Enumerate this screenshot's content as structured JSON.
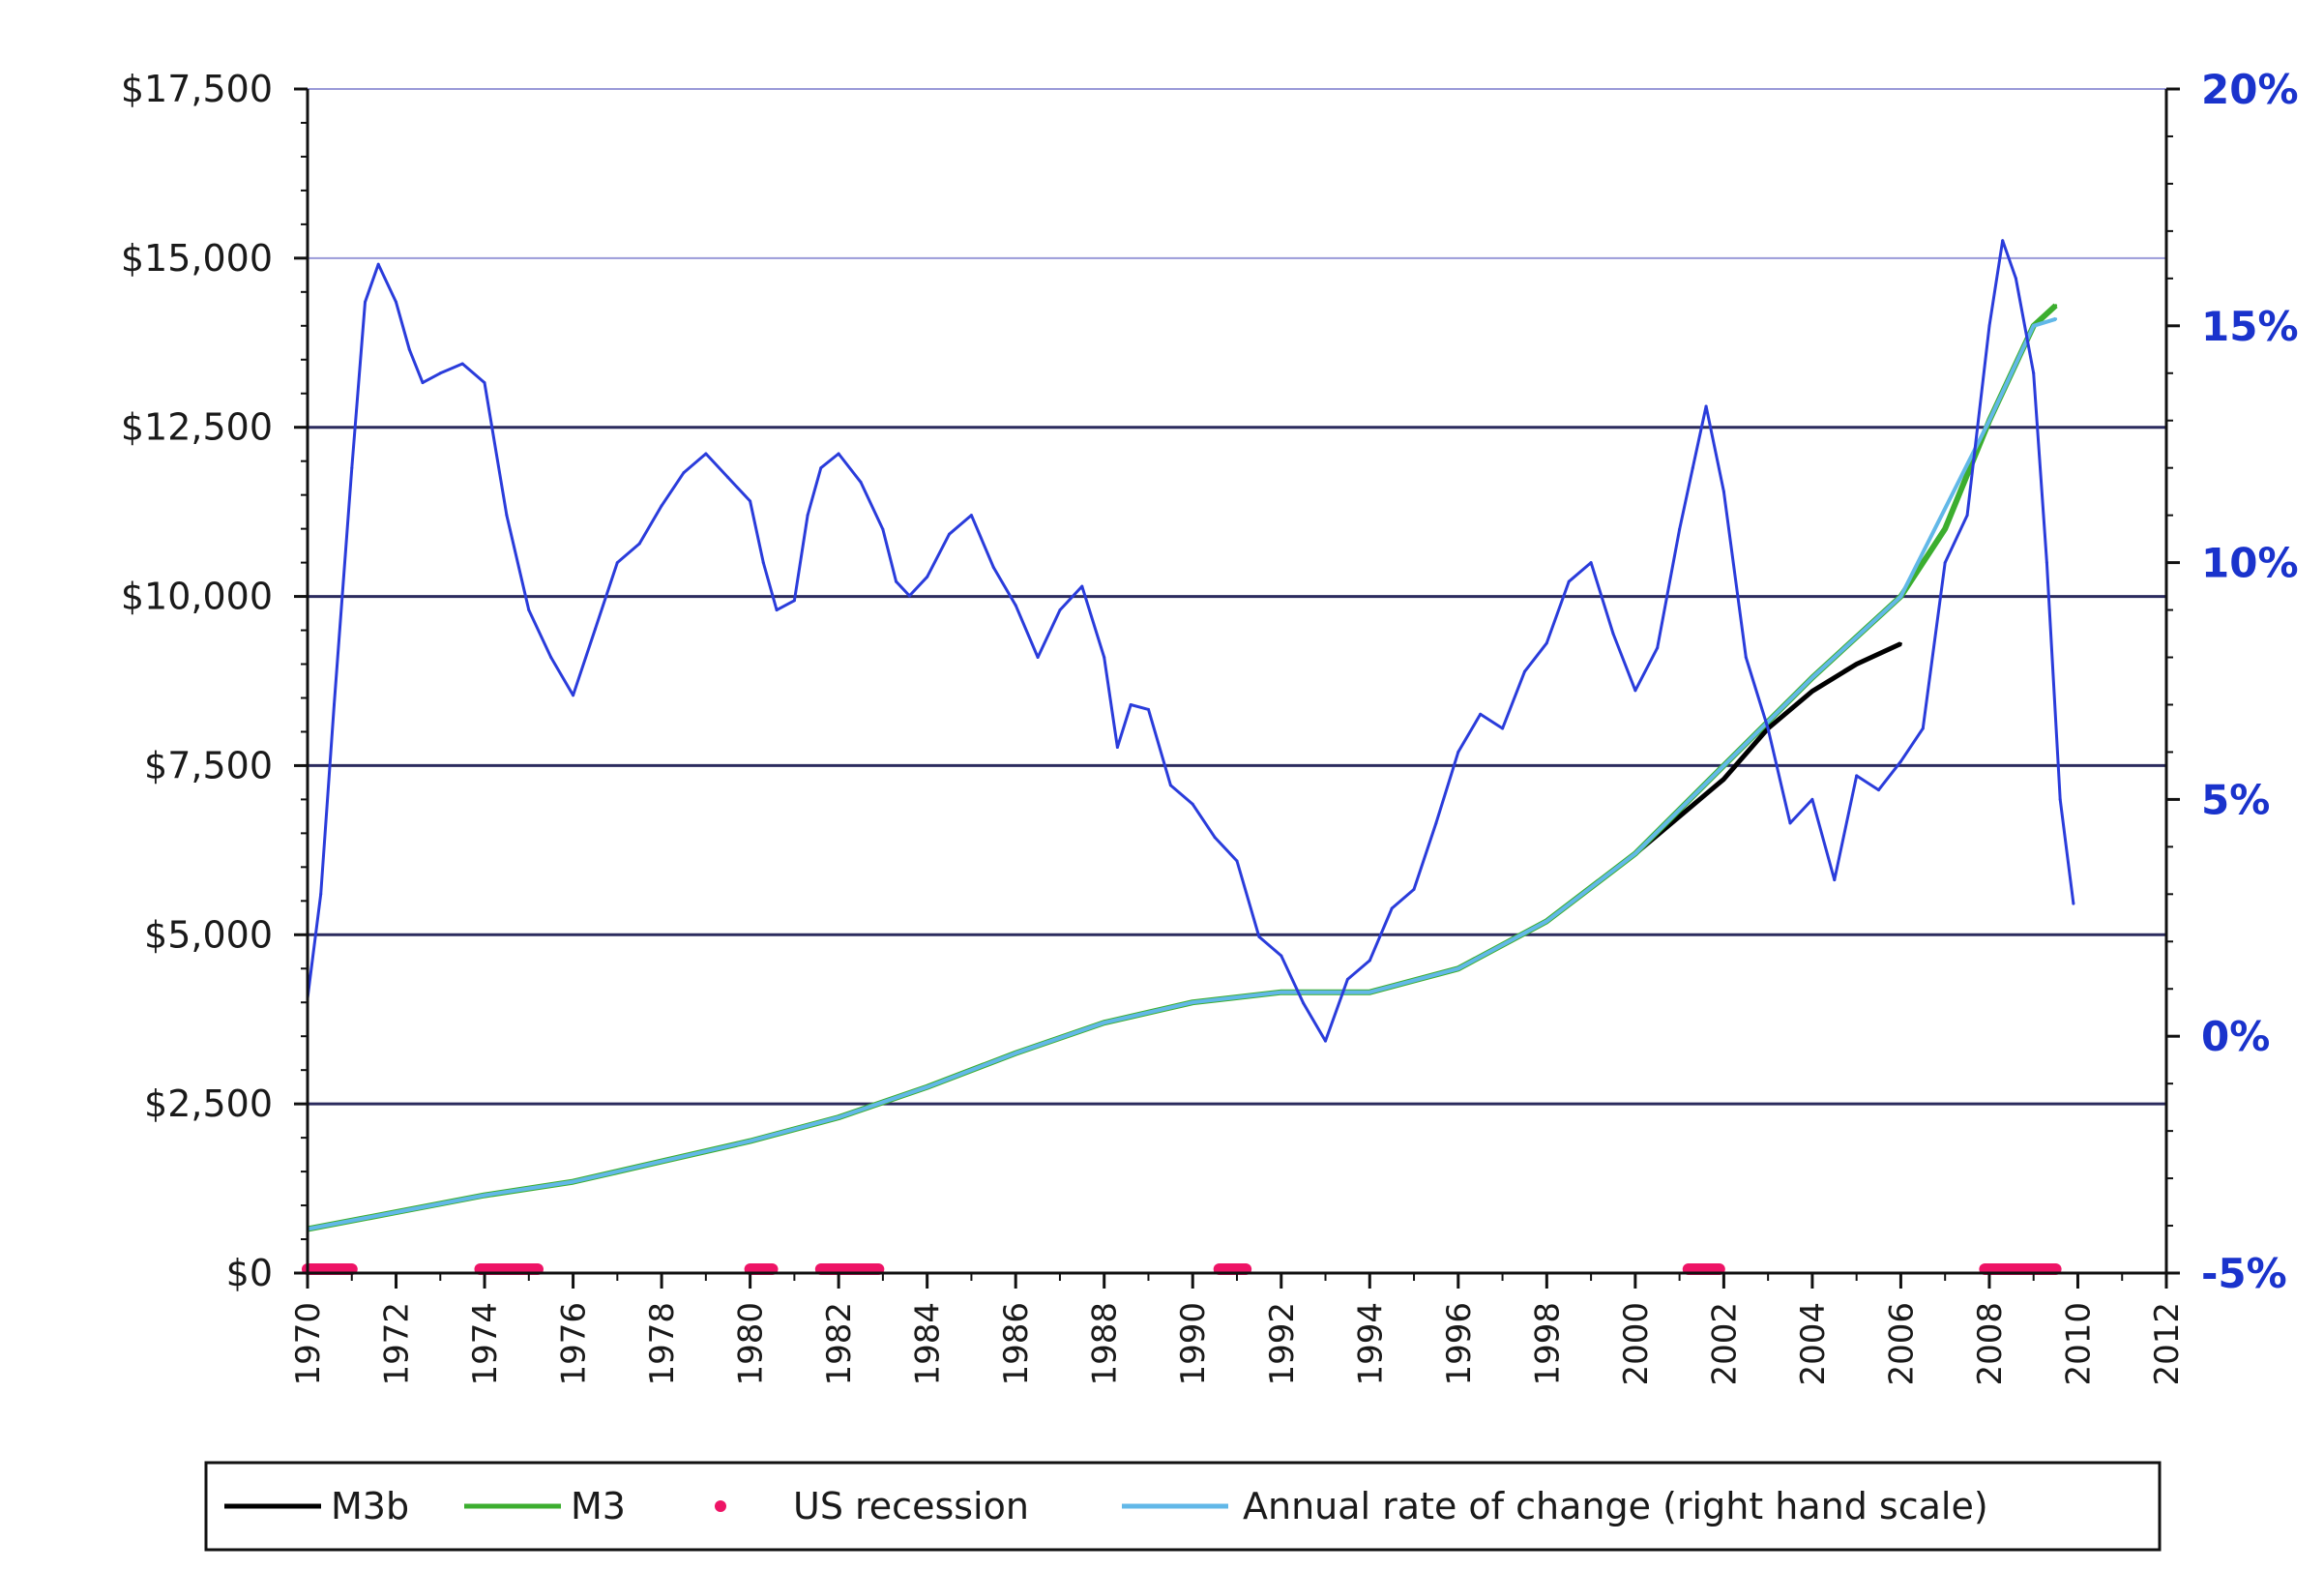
{
  "chart_data": {
    "type": "line",
    "title": "",
    "xlabel": "",
    "ylabel": "",
    "y2label": "",
    "xlim": [
      1970,
      2012
    ],
    "ylim": [
      0,
      17500
    ],
    "y2lim": [
      -5,
      20
    ],
    "x_ticks": [
      "1970",
      "1972",
      "1974",
      "1976",
      "1978",
      "1980",
      "1982",
      "1984",
      "1986",
      "1988",
      "1990",
      "1992",
      "1994",
      "1996",
      "1998",
      "2000",
      "2002",
      "2004",
      "2006",
      "2008",
      "2010",
      "2012"
    ],
    "y_ticks": [
      "$0",
      "$2,500",
      "$5,000",
      "$7,500",
      "$10,000",
      "$12,500",
      "$15,000",
      "$17,500"
    ],
    "y2_ticks": [
      "-5%",
      "0%",
      "5%",
      "10%",
      "15%",
      "20%"
    ],
    "grid": "horizontal",
    "legend_position": "bottom",
    "series": [
      {
        "name": "M3b",
        "axis": "left",
        "color": "#000000",
        "x": [
          1970,
          1972,
          1974,
          1976,
          1978,
          1980,
          1982,
          1984,
          1986,
          1988,
          1990,
          1992,
          1994,
          1996,
          1998,
          2000,
          2002,
          2003,
          2004,
          2005,
          2006
        ],
        "values": [
          650,
          900,
          1150,
          1350,
          1650,
          1950,
          2300,
          2750,
          3250,
          3700,
          4000,
          4150,
          4150,
          4500,
          5200,
          6200,
          7300,
          8050,
          8600,
          9000,
          9300
        ]
      },
      {
        "name": "M3",
        "axis": "left",
        "color": "#3cae2f",
        "x": [
          1970,
          1972,
          1974,
          1976,
          1978,
          1980,
          1982,
          1984,
          1986,
          1988,
          1990,
          1992,
          1994,
          1996,
          1998,
          2000,
          2002,
          2004,
          2006,
          2007,
          2008,
          2009,
          2009.5
        ],
        "values": [
          650,
          900,
          1150,
          1350,
          1650,
          1950,
          2300,
          2750,
          3250,
          3700,
          4000,
          4150,
          4150,
          4500,
          5200,
          6200,
          7500,
          8800,
          10000,
          11000,
          12600,
          14000,
          14300
        ]
      },
      {
        "name": "Annual rate of change (right hand scale)",
        "axis": "right",
        "color": "#2a3cdb",
        "x": [
          1970,
          1970.3,
          1970.6,
          1971,
          1971.3,
          1971.6,
          1972,
          1972.3,
          1972.6,
          1973,
          1973.5,
          1974,
          1974.5,
          1975,
          1975.5,
          1976,
          1976.5,
          1977,
          1977.5,
          1978,
          1978.5,
          1979,
          1979.5,
          1980,
          1980.3,
          1980.6,
          1981,
          1981.3,
          1981.6,
          1982,
          1982.5,
          1983,
          1983.3,
          1983.6,
          1984,
          1984.5,
          1985,
          1985.5,
          1986,
          1986.5,
          1987,
          1987.5,
          1988,
          1988.3,
          1988.6,
          1989,
          1989.5,
          1990,
          1990.5,
          1991,
          1991.5,
          1992,
          1992.5,
          1993,
          1993.5,
          1994,
          1994.5,
          1995,
          1995.5,
          1996,
          1996.5,
          1997,
          1997.5,
          1998,
          1998.5,
          1999,
          1999.5,
          2000,
          2000.5,
          2001,
          2001.3,
          2001.6,
          2002,
          2002.5,
          2003,
          2003.5,
          2004,
          2004.5,
          2005,
          2005.5,
          2006,
          2006.5,
          2007,
          2007.5,
          2008,
          2008.3,
          2008.6,
          2009,
          2009.3,
          2009.6,
          2009.9
        ],
        "values": [
          0.8,
          3,
          7,
          12,
          15.5,
          16.3,
          15.5,
          14.5,
          13.8,
          14,
          14.2,
          13.8,
          11,
          9,
          8,
          7.2,
          8.6,
          10,
          10.4,
          11.2,
          11.9,
          12.3,
          11.8,
          11.3,
          10,
          9,
          9.2,
          11,
          12,
          12.3,
          11.7,
          10.7,
          9.6,
          9.3,
          9.7,
          10.6,
          11,
          9.9,
          9.1,
          8,
          9,
          9.5,
          8,
          6.1,
          7,
          6.9,
          5.3,
          4.9,
          4.2,
          3.7,
          2.1,
          1.7,
          0.7,
          -0.1,
          1.2,
          1.6,
          2.7,
          3.1,
          4.5,
          6,
          6.8,
          6.5,
          7.7,
          8.3,
          9.6,
          10,
          8.5,
          7.3,
          8.2,
          10.7,
          12,
          13.3,
          11.5,
          8,
          6.5,
          4.5,
          5,
          3.3,
          5.5,
          5.2,
          5.8,
          6.5,
          10,
          11,
          15,
          16.8,
          16,
          14,
          10,
          5,
          2.8
        ]
      },
      {
        "name": "Annual rate of change (right hand scale)",
        "legend": false,
        "axis": "left",
        "color": "#62b8e8",
        "x": [
          1970,
          1972,
          1974,
          1976,
          1978,
          1980,
          1982,
          1984,
          1986,
          1988,
          1990,
          1992,
          1994,
          1996,
          1998,
          2000,
          2002,
          2004,
          2006,
          2008,
          2009,
          2009.5
        ],
        "values": [
          650,
          900,
          1150,
          1350,
          1650,
          1950,
          2300,
          2750,
          3250,
          3700,
          4000,
          4150,
          4150,
          4500,
          5200,
          6200,
          7500,
          8800,
          10000,
          12600,
          14000,
          14100
        ]
      }
    ],
    "recessions": [
      [
        1970,
        1971
      ],
      [
        1973.9,
        1975.2
      ],
      [
        1980,
        1980.5
      ],
      [
        1981.6,
        1982.9
      ],
      [
        1990.6,
        1991.2
      ],
      [
        2001.2,
        2001.9
      ],
      [
        2007.9,
        2009.5
      ]
    ],
    "legend": [
      {
        "label": "M3b",
        "kind": "line",
        "color": "#000000"
      },
      {
        "label": "M3",
        "kind": "line",
        "color": "#3cae2f"
      },
      {
        "label": "US recession",
        "kind": "dot",
        "color": "#ee1466"
      },
      {
        "label": "Annual rate of change (right hand scale)",
        "kind": "line",
        "color": "#62b8e8"
      }
    ]
  }
}
